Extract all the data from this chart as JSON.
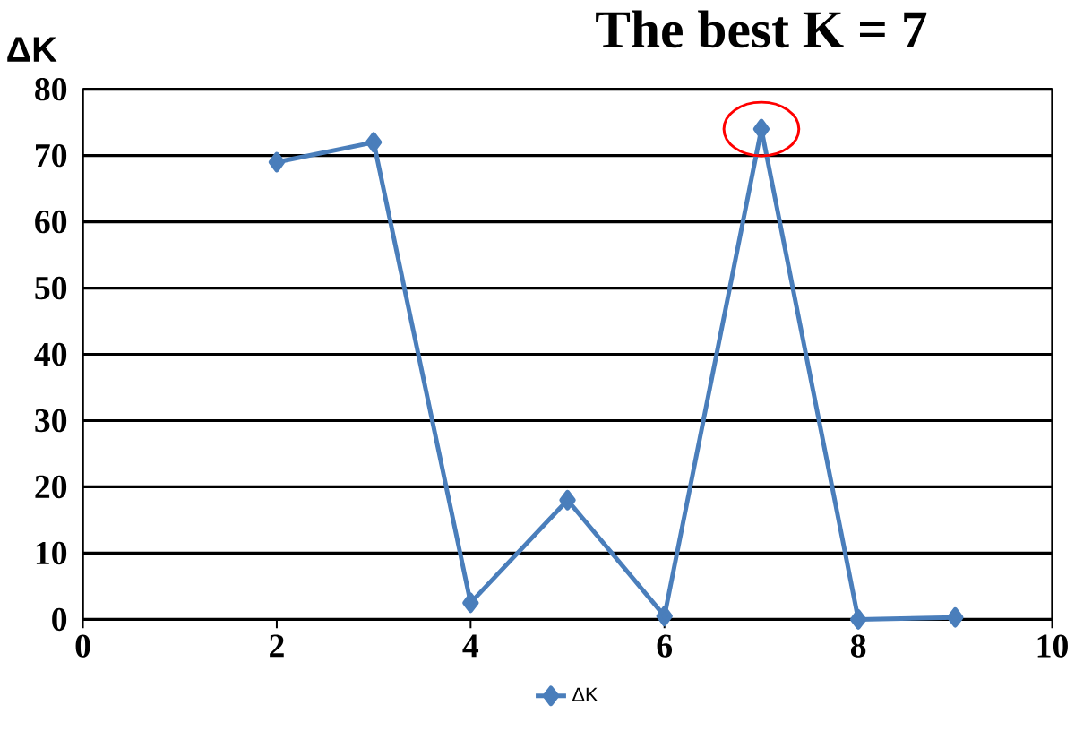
{
  "chart_data": {
    "type": "line",
    "ylabel": "ΔK",
    "annotations": [
      {
        "text": "The best K = 7",
        "x": 7,
        "y": 74
      }
    ],
    "x": [
      2,
      3,
      4,
      5,
      6,
      7,
      8,
      9
    ],
    "series": [
      {
        "name": "ΔK",
        "color": "#4a7ebb",
        "values": [
          69,
          72,
          2.5,
          18,
          0.5,
          74,
          0,
          0.3
        ]
      }
    ],
    "xlim": [
      0,
      10
    ],
    "xticks": [
      0,
      2,
      4,
      6,
      8,
      10
    ],
    "ylim": [
      0,
      80
    ],
    "yticks": [
      0,
      10,
      20,
      30,
      40,
      50,
      60,
      70,
      80
    ],
    "grid": "y",
    "legend": "bottom",
    "marker": "diamond",
    "line_style": "solid"
  }
}
